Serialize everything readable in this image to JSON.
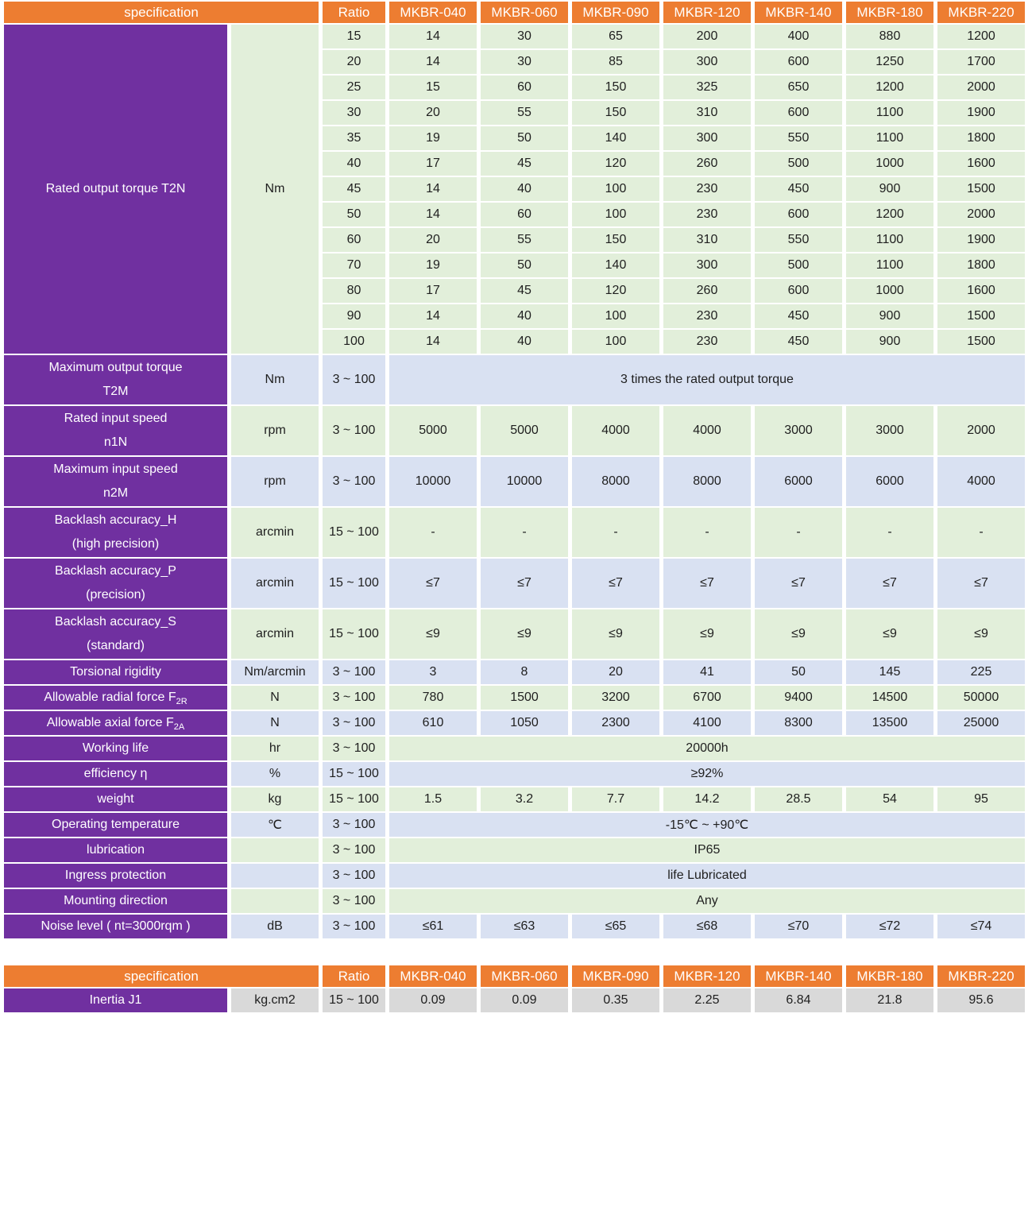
{
  "colors": {
    "header_orange": "#ED7D31",
    "label_purple": "#7030A0",
    "row_green": "#E2EFDA",
    "row_lavender": "#D9E1F2",
    "row_gray": "#D9D9D9"
  },
  "header": {
    "spec_label": "specification",
    "ratio_label": "Ratio",
    "models": [
      "MKBR-040",
      "MKBR-060",
      "MKBR-090",
      "MKBR-120",
      "MKBR-140",
      "MKBR-180",
      "MKBR-220"
    ]
  },
  "main_table": {
    "torque_block": {
      "label": "Rated output torque T2N",
      "unit": "Nm",
      "rows": [
        {
          "ratio": "15",
          "values": [
            "14",
            "30",
            "65",
            "200",
            "400",
            "880",
            "1200"
          ]
        },
        {
          "ratio": "20",
          "values": [
            "14",
            "30",
            "85",
            "300",
            "600",
            "1250",
            "1700"
          ]
        },
        {
          "ratio": "25",
          "values": [
            "15",
            "60",
            "150",
            "325",
            "650",
            "1200",
            "2000"
          ]
        },
        {
          "ratio": "30",
          "values": [
            "20",
            "55",
            "150",
            "310",
            "600",
            "1100",
            "1900"
          ]
        },
        {
          "ratio": "35",
          "values": [
            "19",
            "50",
            "140",
            "300",
            "550",
            "1100",
            "1800"
          ]
        },
        {
          "ratio": "40",
          "values": [
            "17",
            "45",
            "120",
            "260",
            "500",
            "1000",
            "1600"
          ]
        },
        {
          "ratio": "45",
          "values": [
            "14",
            "40",
            "100",
            "230",
            "450",
            "900",
            "1500"
          ]
        },
        {
          "ratio": "50",
          "values": [
            "14",
            "60",
            "100",
            "230",
            "600",
            "1200",
            "2000"
          ]
        },
        {
          "ratio": "60",
          "values": [
            "20",
            "55",
            "150",
            "310",
            "550",
            "1100",
            "1900"
          ]
        },
        {
          "ratio": "70",
          "values": [
            "19",
            "50",
            "140",
            "300",
            "500",
            "1100",
            "1800"
          ]
        },
        {
          "ratio": "80",
          "values": [
            "17",
            "45",
            "120",
            "260",
            "600",
            "1000",
            "1600"
          ]
        },
        {
          "ratio": "90",
          "values": [
            "14",
            "40",
            "100",
            "230",
            "450",
            "900",
            "1500"
          ]
        },
        {
          "ratio": "100",
          "values": [
            "14",
            "40",
            "100",
            "230",
            "450",
            "900",
            "1500"
          ]
        }
      ]
    },
    "spec_rows": [
      {
        "label": "Maximum output torque",
        "label2": "T2M",
        "unit": "Nm",
        "ratio": "3 ~ 100",
        "span": "3 times the rated output torque"
      },
      {
        "label": "Rated input speed",
        "label2": "n1N",
        "unit": "rpm",
        "ratio": "3 ~ 100",
        "values": [
          "5000",
          "5000",
          "4000",
          "4000",
          "3000",
          "3000",
          "2000"
        ]
      },
      {
        "label": "Maximum input speed",
        "label2": "n2M",
        "unit": "rpm",
        "ratio": "3 ~ 100",
        "values": [
          "10000",
          "10000",
          "8000",
          "8000",
          "6000",
          "6000",
          "4000"
        ]
      },
      {
        "label": "Backlash accuracy_H",
        "label2": "(high precision)",
        "unit": "arcmin",
        "ratio": "15 ~ 100",
        "values": [
          "-",
          "-",
          "-",
          "-",
          "-",
          "-",
          "-"
        ]
      },
      {
        "label": "Backlash accuracy_P",
        "label2": "(precision)",
        "unit": "arcmin",
        "ratio": "15 ~ 100",
        "values": [
          "≤7",
          "≤7",
          "≤7",
          "≤7",
          "≤7",
          "≤7",
          "≤7"
        ]
      },
      {
        "label": "Backlash accuracy_S",
        "label2": "(standard)",
        "unit": "arcmin",
        "ratio": "15 ~ 100",
        "values": [
          "≤9",
          "≤9",
          "≤9",
          "≤9",
          "≤9",
          "≤9",
          "≤9"
        ]
      },
      {
        "label": "Torsional rigidity",
        "unit": "Nm/arcmin",
        "ratio": "3 ~ 100",
        "values": [
          "3",
          "8",
          "20",
          "41",
          "50",
          "145",
          "225"
        ]
      },
      {
        "label": "Allowable radial force F",
        "sub": "2R",
        "unit": "N",
        "ratio": "3 ~ 100",
        "values": [
          "780",
          "1500",
          "3200",
          "6700",
          "9400",
          "14500",
          "50000"
        ]
      },
      {
        "label": "Allowable axial force F",
        "sub": "2A",
        "unit": "N",
        "ratio": "3 ~ 100",
        "values": [
          "610",
          "1050",
          "2300",
          "4100",
          "8300",
          "13500",
          "25000"
        ]
      },
      {
        "label": "Working life",
        "unit": "hr",
        "ratio": "3 ~ 100",
        "span": "20000h"
      },
      {
        "label": "efficiency η",
        "unit": "%",
        "ratio": "15 ~ 100",
        "span": "≥92%"
      },
      {
        "label": "weight",
        "unit": "kg",
        "ratio": "15 ~ 100",
        "values": [
          "1.5",
          "3.2",
          "7.7",
          "14.2",
          "28.5",
          "54",
          "95"
        ]
      },
      {
        "label": "Operating temperature",
        "unit": "℃",
        "ratio": "3 ~ 100",
        "span": "-15℃ ~ +90℃"
      },
      {
        "label": "lubrication",
        "unit": "",
        "ratio": "3 ~ 100",
        "span": "IP65"
      },
      {
        "label": "Ingress protection",
        "unit": "",
        "ratio": "3 ~ 100",
        "span": "life Lubricated"
      },
      {
        "label": "Mounting direction",
        "unit": "",
        "ratio": "3 ~ 100",
        "span": "Any"
      },
      {
        "label": "Noise level ( nt=3000rqm )",
        "unit": "dB",
        "ratio": "3 ~ 100",
        "values": [
          "≤61",
          "≤63",
          "≤65",
          "≤68",
          "≤70",
          "≤72",
          "≤74"
        ]
      }
    ]
  },
  "bottom_table": {
    "inertia_row": {
      "label": "Inertia J1",
      "unit": "kg.cm2",
      "ratio": "15 ~ 100",
      "values": [
        "0.09",
        "0.09",
        "0.35",
        "2.25",
        "6.84",
        "21.8",
        "95.6"
      ]
    }
  }
}
